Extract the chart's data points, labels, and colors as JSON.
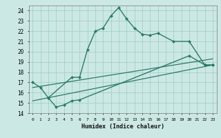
{
  "xlabel": "Humidex (Indice chaleur)",
  "bg_color": "#cce8e4",
  "grid_color": "#99ccc4",
  "line_color": "#2a7a6a",
  "xlim": [
    -0.5,
    23.5
  ],
  "ylim": [
    14,
    24.5
  ],
  "xticks": [
    0,
    1,
    2,
    3,
    4,
    5,
    6,
    7,
    8,
    9,
    10,
    11,
    12,
    13,
    14,
    15,
    16,
    17,
    18,
    19,
    20,
    21,
    22,
    23
  ],
  "yticks": [
    14,
    15,
    16,
    17,
    18,
    19,
    20,
    21,
    22,
    23,
    24
  ],
  "series1_x": [
    0,
    1,
    2,
    5,
    6,
    7,
    8,
    9,
    10,
    11,
    12,
    13,
    14,
    15,
    16,
    18,
    20,
    22,
    23
  ],
  "series1_y": [
    17.0,
    16.5,
    15.5,
    17.5,
    17.5,
    20.2,
    22.0,
    22.3,
    23.5,
    24.3,
    23.2,
    22.3,
    21.7,
    21.6,
    21.8,
    21.0,
    21.0,
    18.7,
    18.7
  ],
  "series2_x": [
    2,
    3,
    4,
    5,
    6,
    20,
    22,
    23
  ],
  "series2_y": [
    15.5,
    14.6,
    14.8,
    15.2,
    15.3,
    19.6,
    18.7,
    18.7
  ],
  "line1_x": [
    0,
    23
  ],
  "line1_y": [
    15.2,
    18.7
  ],
  "line2_x": [
    0,
    23
  ],
  "line2_y": [
    16.5,
    19.3
  ]
}
